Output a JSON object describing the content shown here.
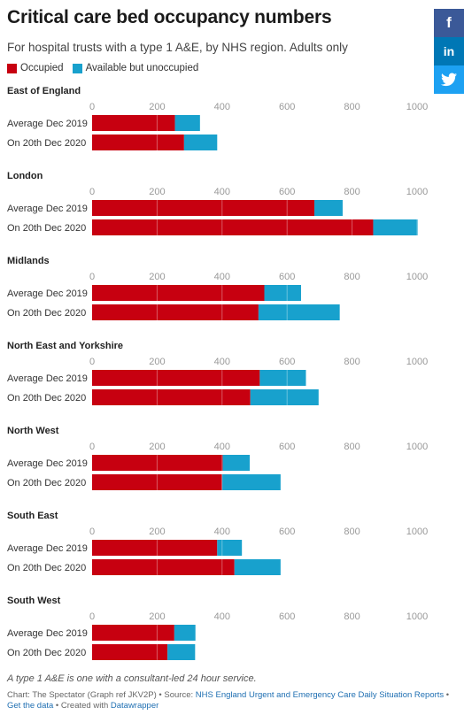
{
  "title": "Critical care bed occupancy numbers",
  "subtitle": "For hospital trusts with a type 1 A&E, by NHS region. Adults only",
  "legend": [
    {
      "label": "Occupied",
      "color": "#c70010"
    },
    {
      "label": "Available but unoccupied",
      "color": "#18a1cd"
    }
  ],
  "social": {
    "facebook": "f",
    "linkedin": "in",
    "twitter": "t"
  },
  "chart_data": {
    "type": "bar",
    "orientation": "horizontal",
    "stacked": true,
    "xlim": [
      0,
      1000
    ],
    "ticks": [
      0,
      200,
      400,
      600,
      800,
      1000
    ],
    "categories": [
      "Average Dec 2019",
      "On 20th Dec 2020"
    ],
    "series_names": [
      "Occupied",
      "Available but unoccupied"
    ],
    "colors": [
      "#c70010",
      "#18a1cd"
    ],
    "panels": [
      {
        "region": "East of England",
        "occupied": [
          255,
          283
        ],
        "available": [
          77,
          102
        ]
      },
      {
        "region": "London",
        "occupied": [
          684,
          865
        ],
        "available": [
          87,
          137
        ]
      },
      {
        "region": "Midlands",
        "occupied": [
          530,
          512
        ],
        "available": [
          113,
          250
        ]
      },
      {
        "region": "North East and Yorkshire",
        "occupied": [
          516,
          487
        ],
        "available": [
          142,
          210
        ]
      },
      {
        "region": "North West",
        "occupied": [
          402,
          400
        ],
        "available": [
          83,
          180
        ]
      },
      {
        "region": "South East",
        "occupied": [
          385,
          438
        ],
        "available": [
          76,
          142
        ]
      },
      {
        "region": "South West",
        "occupied": [
          253,
          232
        ],
        "available": [
          65,
          85
        ]
      }
    ]
  },
  "footnote": "A type 1 A&E is one with a consultant-led 24 hour service.",
  "credits": {
    "chart": "Chart: The Spectator (Graph ref JKV2P) • Source: ",
    "source": "NHS England Urgent and Emergency Care Daily Situation Reports",
    "sep1": " • ",
    "getdata": "Get the data",
    "created": " • Created with ",
    "tool": "Datawrapper"
  }
}
